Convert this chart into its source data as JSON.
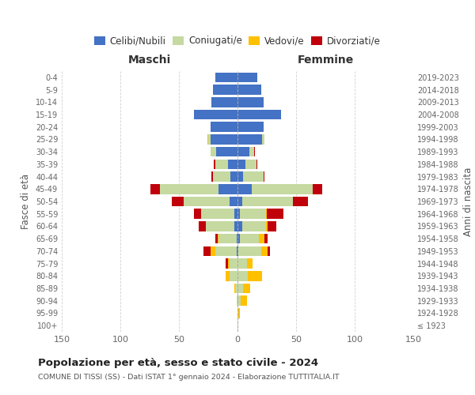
{
  "age_groups": [
    "100+",
    "95-99",
    "90-94",
    "85-89",
    "80-84",
    "75-79",
    "70-74",
    "65-69",
    "60-64",
    "55-59",
    "50-54",
    "45-49",
    "40-44",
    "35-39",
    "30-34",
    "25-29",
    "20-24",
    "15-19",
    "10-14",
    "5-9",
    "0-4"
  ],
  "birth_years": [
    "≤ 1923",
    "1924-1928",
    "1929-1933",
    "1934-1938",
    "1939-1943",
    "1944-1948",
    "1949-1953",
    "1954-1958",
    "1959-1963",
    "1964-1968",
    "1969-1973",
    "1974-1978",
    "1979-1983",
    "1984-1988",
    "1989-1993",
    "1994-1998",
    "1999-2003",
    "2004-2008",
    "2009-2013",
    "2014-2018",
    "2019-2023"
  ],
  "males": {
    "celibe": [
      0,
      0,
      0,
      0,
      0,
      0,
      1,
      1,
      3,
      3,
      7,
      16,
      6,
      8,
      18,
      23,
      23,
      37,
      22,
      21,
      19
    ],
    "coniugato": [
      0,
      0,
      1,
      2,
      7,
      7,
      18,
      15,
      24,
      28,
      39,
      50,
      15,
      11,
      5,
      2,
      0,
      0,
      0,
      0,
      0
    ],
    "vedovo": [
      0,
      0,
      0,
      1,
      3,
      1,
      4,
      1,
      0,
      0,
      0,
      0,
      0,
      0,
      0,
      1,
      0,
      0,
      0,
      0,
      0
    ],
    "divorziato": [
      0,
      0,
      0,
      0,
      0,
      2,
      6,
      2,
      6,
      6,
      10,
      8,
      1,
      1,
      0,
      0,
      0,
      0,
      0,
      0,
      0
    ]
  },
  "females": {
    "nubile": [
      0,
      0,
      0,
      0,
      0,
      0,
      1,
      2,
      4,
      2,
      4,
      12,
      5,
      7,
      10,
      21,
      22,
      37,
      22,
      20,
      17
    ],
    "coniugata": [
      1,
      1,
      3,
      5,
      9,
      8,
      19,
      16,
      20,
      22,
      43,
      52,
      17,
      9,
      4,
      2,
      0,
      0,
      0,
      0,
      0
    ],
    "vedova": [
      0,
      1,
      5,
      6,
      12,
      5,
      6,
      5,
      2,
      1,
      0,
      0,
      0,
      0,
      0,
      0,
      0,
      0,
      0,
      0,
      0
    ],
    "divorziata": [
      0,
      0,
      0,
      0,
      0,
      0,
      2,
      3,
      7,
      14,
      13,
      8,
      1,
      1,
      1,
      0,
      0,
      0,
      0,
      0,
      0
    ]
  },
  "colors": {
    "celibe": "#4472c4",
    "coniugato": "#c5d9a0",
    "vedovo": "#ffc000",
    "divorziato": "#c0000b"
  },
  "xlim": 150,
  "title": "Popolazione per età, sesso e stato civile - 2024",
  "subtitle": "COMUNE DI TISSI (SS) - Dati ISTAT 1° gennaio 2024 - Elaborazione TUTTITALIA.IT",
  "ylabel_left": "Fasce di età",
  "ylabel_right": "Anni di nascita",
  "xlabel_left": "Maschi",
  "xlabel_right": "Femmine",
  "background_color": "#ffffff",
  "grid_color": "#cccccc"
}
